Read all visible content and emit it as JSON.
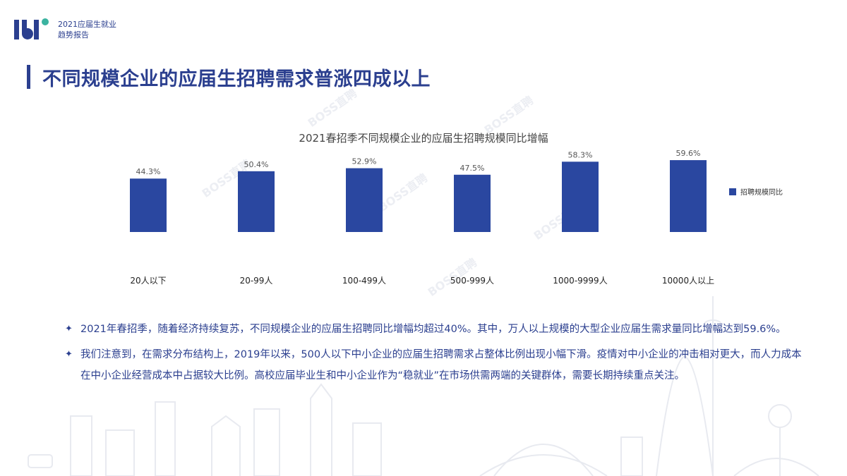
{
  "header": {
    "logo_line1": "2021应届生就业",
    "logo_line2": "趋势报告"
  },
  "page_title": "不同规模企业的应届生招聘需求普涨四成以上",
  "watermark_text": "BOSS直聘",
  "colors": {
    "brand": "#2b3f8f",
    "bar": "#2a47a0",
    "accent": "#3bb3a0"
  },
  "chart_data": {
    "type": "bar",
    "title": "2021春招季不同规模企业的应届生招聘规模同比增幅",
    "categories": [
      "20人以下",
      "20-99人",
      "100-499人",
      "500-999人",
      "1000-9999人",
      "10000人以上"
    ],
    "series": [
      {
        "name": "招聘规模同比",
        "values": [
          44.3,
          50.4,
          52.9,
          47.5,
          58.3,
          59.6
        ]
      }
    ],
    "value_labels": [
      "44.3%",
      "50.4%",
      "52.9%",
      "47.5%",
      "58.3%",
      "59.6%"
    ],
    "ylim": [
      0,
      100
    ],
    "legend_position": "right",
    "grid": false
  },
  "bullets": [
    {
      "icon": "sparkle-icon",
      "text": "2021年春招季，随着经济持续复苏，不同规模企业的应届生招聘同比增幅均超过40%。其中，万人以上规模的大型企业应届生需求量同比增幅达到59.6%。"
    },
    {
      "icon": "sparkle-icon",
      "text": "我们注意到，在需求分布结构上，2019年以来，500人以下中小企业的应届生招聘需求占整体比例出现小幅下滑。疫情对中小企业的冲击相对更大，而人力成本在中小企业经营成本中占据较大比例。高校应届毕业生和中小企业作为“稳就业”在市场供需两端的关键群体，需要长期持续重点关注。"
    }
  ]
}
